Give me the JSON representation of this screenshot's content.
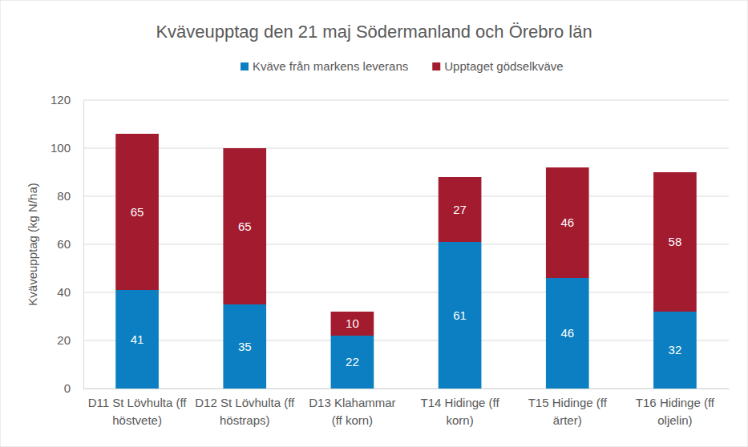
{
  "chart_data": {
    "type": "bar",
    "title": "Kväveupptag den 21 maj Södermanland och Örebro län",
    "y_label": "Kväveupptag (kg N/ha)",
    "categories": [
      "D11 St Lövhulta (ff höstvete)",
      "D12 St Lövhulta (ff höstraps)",
      "D13 Klahammar (ff korn)",
      "T14 Hidinge (ff korn)",
      "T15 Hidinge (ff ärter)",
      "T16 Hidinge (ff oljelin)"
    ],
    "series": [
      {
        "name": "Kväve från markens leverans",
        "color": "#0b7fc1",
        "values": [
          41,
          35,
          22,
          61,
          46,
          32
        ]
      },
      {
        "name": "Upptaget gödselkväve",
        "color": "#a21b2e",
        "values": [
          65,
          65,
          10,
          27,
          46,
          58
        ]
      }
    ],
    "ylim": [
      0,
      120
    ],
    "yticks": [
      0,
      20,
      40,
      60,
      80,
      100,
      120
    ],
    "grid": true,
    "stacked": true,
    "data_labels": true,
    "legend": "top"
  }
}
